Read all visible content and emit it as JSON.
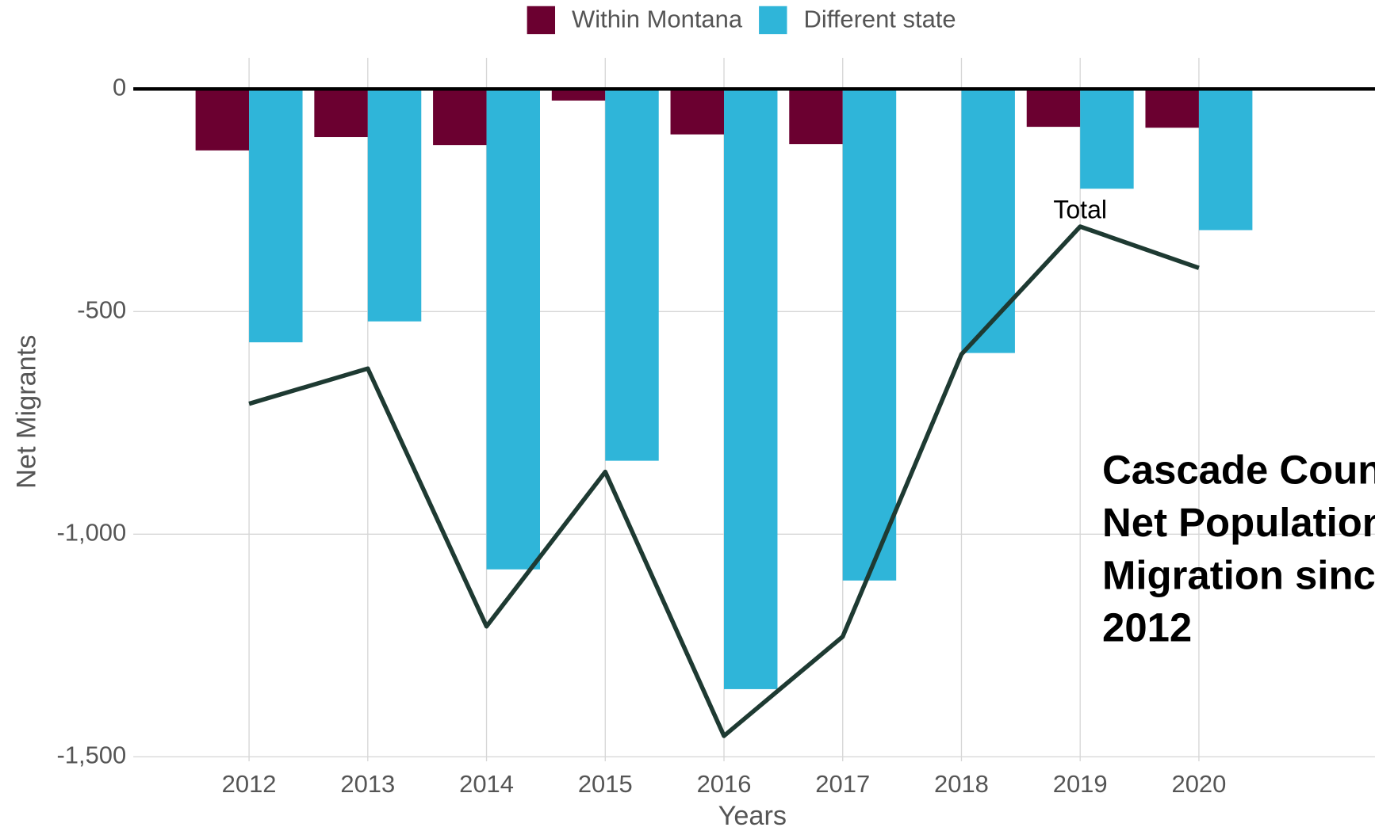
{
  "chart_data": {
    "type": "bar",
    "title_lines": [
      "Cascade County",
      "Net Population",
      "Migration since",
      "2012"
    ],
    "x_label": "Years",
    "y_label": "Net Migrants",
    "categories": [
      "2012",
      "2013",
      "2014",
      "2015",
      "2016",
      "2017",
      "2018",
      "2019",
      "2020"
    ],
    "series": [
      {
        "name": "Within Montana",
        "color": "#6b0030",
        "type": "bar",
        "values": [
          -138,
          -108,
          -126,
          -26,
          -102,
          -124,
          0,
          -85,
          -87
        ]
      },
      {
        "name": "Different state",
        "color": "#2fb5d9",
        "type": "bar",
        "values": [
          -569,
          -522,
          -1079,
          -835,
          -1348,
          -1104,
          -593,
          -224,
          -317
        ]
      },
      {
        "name": "Total",
        "color": "#1e3a32",
        "type": "line",
        "values": [
          -707,
          -628,
          -1207,
          -860,
          -1453,
          -1230,
          -596,
          -309,
          -402
        ]
      }
    ],
    "ylim": [
      -1510,
      70
    ],
    "yticks": [
      {
        "value": -1500,
        "label": "-1,500"
      },
      {
        "value": -1000,
        "label": "-1,000"
      },
      -500,
      0
    ],
    "grid": true,
    "legend": "top"
  }
}
